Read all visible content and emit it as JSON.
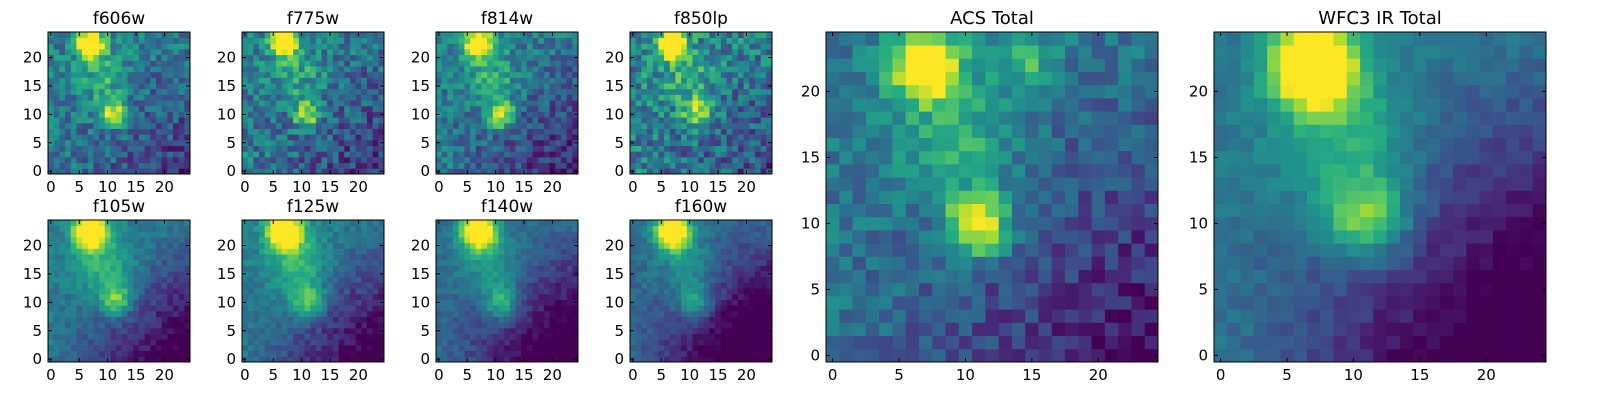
{
  "chart_data": [
    {
      "type": "heatmap",
      "title": "f606w",
      "x_ticks": [
        "0",
        "5",
        "10",
        "15",
        "20"
      ],
      "y_ticks": [
        "0",
        "5",
        "10",
        "15",
        "20"
      ],
      "xlim": [
        0,
        25
      ],
      "ylim": [
        0,
        25
      ],
      "grid": false,
      "colormap": "viridis",
      "blobs": [
        {
          "x": 7.5,
          "y": 23,
          "amp": 1.0,
          "sigma": 1.6
        },
        {
          "x": 11.5,
          "y": 10.5,
          "amp": 0.62,
          "sigma": 1.6
        },
        {
          "x": 10,
          "y": 17,
          "amp": 0.25,
          "sigma": 3.5
        }
      ],
      "background": 0.42,
      "gradient": 0.14,
      "noise": 0.17,
      "seed": 11
    },
    {
      "type": "heatmap",
      "title": "f775w",
      "x_ticks": [
        "0",
        "5",
        "10",
        "15",
        "20"
      ],
      "y_ticks": [
        "0",
        "5",
        "10",
        "15",
        "20"
      ],
      "xlim": [
        0,
        25
      ],
      "ylim": [
        0,
        25
      ],
      "grid": false,
      "colormap": "viridis",
      "blobs": [
        {
          "x": 7.5,
          "y": 23,
          "amp": 1.0,
          "sigma": 1.6
        },
        {
          "x": 11.5,
          "y": 10.5,
          "amp": 0.55,
          "sigma": 1.6
        },
        {
          "x": 10,
          "y": 17,
          "amp": 0.22,
          "sigma": 3.5
        }
      ],
      "background": 0.42,
      "gradient": 0.14,
      "noise": 0.19,
      "seed": 23
    },
    {
      "type": "heatmap",
      "title": "f814w",
      "x_ticks": [
        "0",
        "5",
        "10",
        "15",
        "20"
      ],
      "y_ticks": [
        "0",
        "5",
        "10",
        "15",
        "20"
      ],
      "xlim": [
        0,
        25
      ],
      "ylim": [
        0,
        25
      ],
      "grid": false,
      "colormap": "viridis",
      "blobs": [
        {
          "x": 7.5,
          "y": 23,
          "amp": 1.0,
          "sigma": 1.7
        },
        {
          "x": 11.5,
          "y": 10.5,
          "amp": 0.58,
          "sigma": 1.7
        },
        {
          "x": 10,
          "y": 17,
          "amp": 0.25,
          "sigma": 3.5
        }
      ],
      "background": 0.42,
      "gradient": 0.18,
      "noise": 0.16,
      "seed": 37
    },
    {
      "type": "heatmap",
      "title": "f850lp",
      "x_ticks": [
        "0",
        "5",
        "10",
        "15",
        "20"
      ],
      "y_ticks": [
        "0",
        "5",
        "10",
        "15",
        "20"
      ],
      "xlim": [
        0,
        25
      ],
      "ylim": [
        0,
        25
      ],
      "grid": false,
      "colormap": "viridis",
      "blobs": [
        {
          "x": 7.5,
          "y": 23,
          "amp": 1.0,
          "sigma": 1.7
        },
        {
          "x": 12,
          "y": 11,
          "amp": 0.45,
          "sigma": 1.9
        },
        {
          "x": 10,
          "y": 17,
          "amp": 0.22,
          "sigma": 3.5
        }
      ],
      "background": 0.45,
      "gradient": 0.12,
      "noise": 0.21,
      "seed": 41
    },
    {
      "type": "heatmap",
      "title": "f105w",
      "x_ticks": [
        "0",
        "5",
        "10",
        "15",
        "20"
      ],
      "y_ticks": [
        "0",
        "5",
        "10",
        "15",
        "20"
      ],
      "xlim": [
        0,
        25
      ],
      "ylim": [
        0,
        25
      ],
      "grid": false,
      "colormap": "viridis",
      "blobs": [
        {
          "x": 7.5,
          "y": 23,
          "amp": 1.0,
          "sigma": 2.0
        },
        {
          "x": 12,
          "y": 11,
          "amp": 0.45,
          "sigma": 2.0
        },
        {
          "x": 10,
          "y": 17,
          "amp": 0.3,
          "sigma": 4
        }
      ],
      "background": 0.42,
      "gradient": 0.28,
      "noise": 0.08,
      "seed": 53
    },
    {
      "type": "heatmap",
      "title": "f125w",
      "x_ticks": [
        "0",
        "5",
        "10",
        "15",
        "20"
      ],
      "y_ticks": [
        "0",
        "5",
        "10",
        "15",
        "20"
      ],
      "xlim": [
        0,
        25
      ],
      "ylim": [
        0,
        25
      ],
      "grid": false,
      "colormap": "viridis",
      "blobs": [
        {
          "x": 7.5,
          "y": 23,
          "amp": 1.0,
          "sigma": 2.1
        },
        {
          "x": 11.5,
          "y": 10.5,
          "amp": 0.42,
          "sigma": 2.1
        },
        {
          "x": 10,
          "y": 17,
          "amp": 0.32,
          "sigma": 4
        }
      ],
      "background": 0.42,
      "gradient": 0.28,
      "noise": 0.08,
      "seed": 67
    },
    {
      "type": "heatmap",
      "title": "f140w",
      "x_ticks": [
        "0",
        "5",
        "10",
        "15",
        "20"
      ],
      "y_ticks": [
        "0",
        "5",
        "10",
        "15",
        "20"
      ],
      "xlim": [
        0,
        25
      ],
      "ylim": [
        0,
        25
      ],
      "grid": false,
      "colormap": "viridis",
      "blobs": [
        {
          "x": 7.5,
          "y": 23,
          "amp": 1.0,
          "sigma": 2.1
        },
        {
          "x": 11.5,
          "y": 10.5,
          "amp": 0.4,
          "sigma": 2.1
        },
        {
          "x": 10,
          "y": 17,
          "amp": 0.25,
          "sigma": 4
        }
      ],
      "background": 0.36,
      "gradient": 0.3,
      "noise": 0.07,
      "seed": 71
    },
    {
      "type": "heatmap",
      "title": "f160w",
      "x_ticks": [
        "0",
        "5",
        "10",
        "15",
        "20"
      ],
      "y_ticks": [
        "0",
        "5",
        "10",
        "15",
        "20"
      ],
      "xlim": [
        0,
        25
      ],
      "ylim": [
        0,
        25
      ],
      "grid": false,
      "colormap": "viridis",
      "blobs": [
        {
          "x": 7.5,
          "y": 23,
          "amp": 1.0,
          "sigma": 2.1
        },
        {
          "x": 11.5,
          "y": 10.5,
          "amp": 0.38,
          "sigma": 2.1
        },
        {
          "x": 10,
          "y": 17,
          "amp": 0.25,
          "sigma": 4
        }
      ],
      "background": 0.34,
      "gradient": 0.34,
      "noise": 0.07,
      "seed": 83
    },
    {
      "type": "heatmap",
      "title": "ACS Total",
      "x_ticks": [
        "0",
        "5",
        "10",
        "15",
        "20"
      ],
      "y_ticks": [
        "0",
        "5",
        "10",
        "15",
        "20"
      ],
      "xlim": [
        0,
        25
      ],
      "ylim": [
        0,
        25
      ],
      "grid": false,
      "colormap": "viridis",
      "blobs": [
        {
          "x": 7.5,
          "y": 22.5,
          "amp": 1.0,
          "sigma": 1.7
        },
        {
          "x": 11.5,
          "y": 10.5,
          "amp": 0.75,
          "sigma": 1.6
        },
        {
          "x": 10,
          "y": 17,
          "amp": 0.28,
          "sigma": 3.5
        },
        {
          "x": 15,
          "y": 23,
          "amp": 0.3,
          "sigma": 1.5
        }
      ],
      "background": 0.4,
      "gradient": 0.2,
      "noise": 0.12,
      "seed": 97
    },
    {
      "type": "heatmap",
      "title": "WFC3 IR Total",
      "x_ticks": [
        "0",
        "5",
        "10",
        "15",
        "20"
      ],
      "y_ticks": [
        "0",
        "5",
        "10",
        "15",
        "20"
      ],
      "xlim": [
        0,
        25
      ],
      "ylim": [
        0,
        25
      ],
      "grid": false,
      "colormap": "viridis",
      "blobs": [
        {
          "x": 7.5,
          "y": 22.5,
          "amp": 1.0,
          "sigma": 2.2
        },
        {
          "x": 11.5,
          "y": 11,
          "amp": 0.5,
          "sigma": 2.2
        },
        {
          "x": 10,
          "y": 17,
          "amp": 0.3,
          "sigma": 4
        }
      ],
      "background": 0.4,
      "gradient": 0.32,
      "noise": 0.06,
      "seed": 101
    }
  ]
}
